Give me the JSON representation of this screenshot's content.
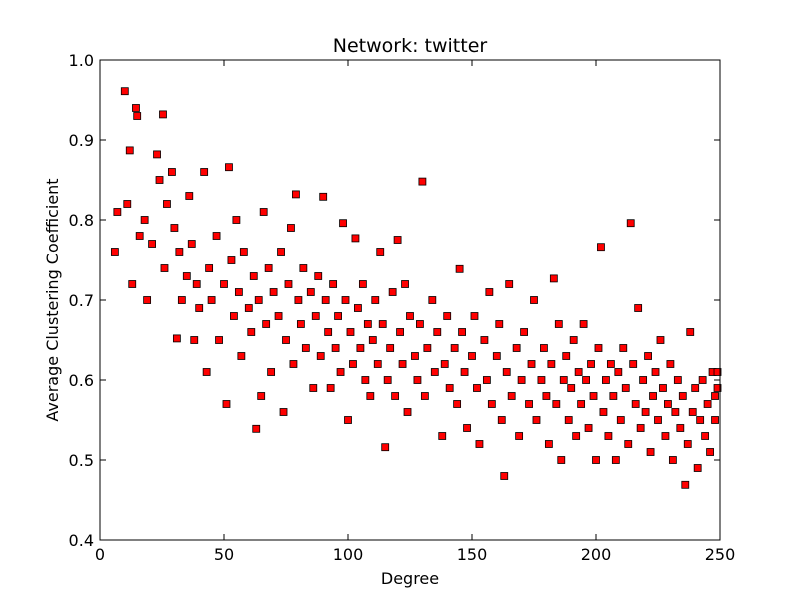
{
  "chart_data": {
    "type": "scatter",
    "title": "Network: twitter",
    "x_label": "Degree",
    "y_label": "Average Clustering Coefficient",
    "color": "#ff0000",
    "edge_color": "#000000",
    "xlim": [
      0,
      250
    ],
    "xticks": [
      0,
      50,
      100,
      150,
      200,
      250
    ],
    "ylim": [
      0.4,
      1
    ],
    "yticks": [
      0.4,
      0.5,
      0.6,
      0.7,
      0.8,
      0.9,
      {
        "value": 1,
        "label": "1.0"
      }
    ],
    "x": [
      10,
      14.5,
      15,
      25.4,
      12,
      23,
      130,
      52,
      90,
      79,
      98,
      103,
      214,
      202,
      120,
      145,
      183,
      163,
      236,
      63,
      115,
      6,
      7,
      43,
      31,
      11,
      13,
      16,
      18,
      19,
      21,
      24,
      26,
      27,
      29,
      30,
      32,
      33,
      35,
      36,
      37,
      38,
      39,
      40,
      42,
      44,
      45,
      47,
      48,
      50,
      51,
      53,
      54,
      55,
      56,
      57,
      58,
      60,
      61,
      62,
      64,
      65,
      66,
      67,
      68,
      69,
      70,
      72,
      73,
      74,
      75,
      76,
      77,
      78,
      80,
      81,
      82,
      83,
      85,
      86,
      87,
      88,
      89,
      91,
      92,
      93,
      94,
      95,
      96,
      97,
      99,
      100,
      101,
      102,
      104,
      105,
      106,
      107,
      108,
      109,
      110,
      111,
      112,
      113,
      114,
      116,
      117,
      118,
      119,
      121,
      122,
      123,
      124,
      125,
      127,
      128,
      129,
      131,
      132,
      134,
      135,
      136,
      138,
      139,
      140,
      141,
      143,
      144,
      146,
      147,
      148,
      150,
      151,
      152,
      153,
      155,
      156,
      157,
      158,
      160,
      161,
      162,
      164,
      165,
      166,
      168,
      169,
      170,
      171,
      173,
      174,
      175,
      176,
      178,
      179,
      180,
      181,
      182,
      184,
      185,
      186,
      187,
      188,
      189,
      190,
      191,
      192,
      193,
      194,
      195,
      196,
      197,
      198,
      199,
      200,
      201,
      203,
      204,
      205,
      206,
      207,
      208,
      209,
      210,
      211,
      212,
      213,
      215,
      216,
      217,
      218,
      219,
      220,
      221,
      222,
      223,
      224,
      225,
      226,
      227,
      228,
      229,
      230,
      231,
      232,
      233,
      234,
      235,
      237,
      238,
      239,
      240,
      241,
      242,
      243,
      244,
      245,
      246,
      247,
      248,
      249,
      249,
      248
    ],
    "values": [
      0.961,
      0.94,
      0.93,
      0.932,
      0.887,
      0.882,
      0.848,
      0.866,
      0.829,
      0.832,
      0.796,
      0.777,
      0.796,
      0.766,
      0.775,
      0.739,
      0.727,
      0.48,
      0.469,
      0.539,
      0.516,
      0.76,
      0.81,
      0.61,
      0.652,
      0.82,
      0.72,
      0.78,
      0.8,
      0.7,
      0.77,
      0.85,
      0.74,
      0.82,
      0.86,
      0.79,
      0.76,
      0.7,
      0.73,
      0.83,
      0.77,
      0.65,
      0.72,
      0.69,
      0.86,
      0.74,
      0.7,
      0.78,
      0.65,
      0.72,
      0.57,
      0.75,
      0.68,
      0.8,
      0.71,
      0.63,
      0.76,
      0.69,
      0.66,
      0.73,
      0.7,
      0.58,
      0.81,
      0.67,
      0.74,
      0.61,
      0.71,
      0.68,
      0.76,
      0.56,
      0.65,
      0.72,
      0.79,
      0.62,
      0.7,
      0.67,
      0.74,
      0.64,
      0.71,
      0.59,
      0.68,
      0.73,
      0.63,
      0.7,
      0.66,
      0.59,
      0.72,
      0.64,
      0.68,
      0.61,
      0.7,
      0.55,
      0.66,
      0.62,
      0.69,
      0.64,
      0.72,
      0.6,
      0.67,
      0.58,
      0.65,
      0.7,
      0.62,
      0.76,
      0.67,
      0.6,
      0.64,
      0.71,
      0.58,
      0.66,
      0.62,
      0.72,
      0.56,
      0.68,
      0.63,
      0.6,
      0.67,
      0.58,
      0.64,
      0.7,
      0.61,
      0.66,
      0.53,
      0.62,
      0.68,
      0.59,
      0.64,
      0.57,
      0.66,
      0.61,
      0.54,
      0.63,
      0.68,
      0.59,
      0.52,
      0.65,
      0.6,
      0.71,
      0.57,
      0.63,
      0.67,
      0.55,
      0.61,
      0.72,
      0.58,
      0.64,
      0.53,
      0.6,
      0.66,
      0.57,
      0.62,
      0.7,
      0.55,
      0.6,
      0.64,
      0.58,
      0.52,
      0.62,
      0.57,
      0.67,
      0.5,
      0.6,
      0.63,
      0.55,
      0.59,
      0.65,
      0.53,
      0.61,
      0.57,
      0.67,
      0.6,
      0.54,
      0.62,
      0.58,
      0.5,
      0.64,
      0.56,
      0.6,
      0.53,
      0.62,
      0.58,
      0.5,
      0.61,
      0.55,
      0.64,
      0.59,
      0.52,
      0.62,
      0.57,
      0.69,
      0.54,
      0.6,
      0.56,
      0.63,
      0.51,
      0.58,
      0.61,
      0.55,
      0.65,
      0.59,
      0.53,
      0.57,
      0.62,
      0.5,
      0.56,
      0.6,
      0.54,
      0.58,
      0.52,
      0.66,
      0.56,
      0.59,
      0.49,
      0.55,
      0.6,
      0.53,
      0.57,
      0.51,
      0.61,
      0.55,
      0.59,
      0.61,
      0.58
    ]
  }
}
